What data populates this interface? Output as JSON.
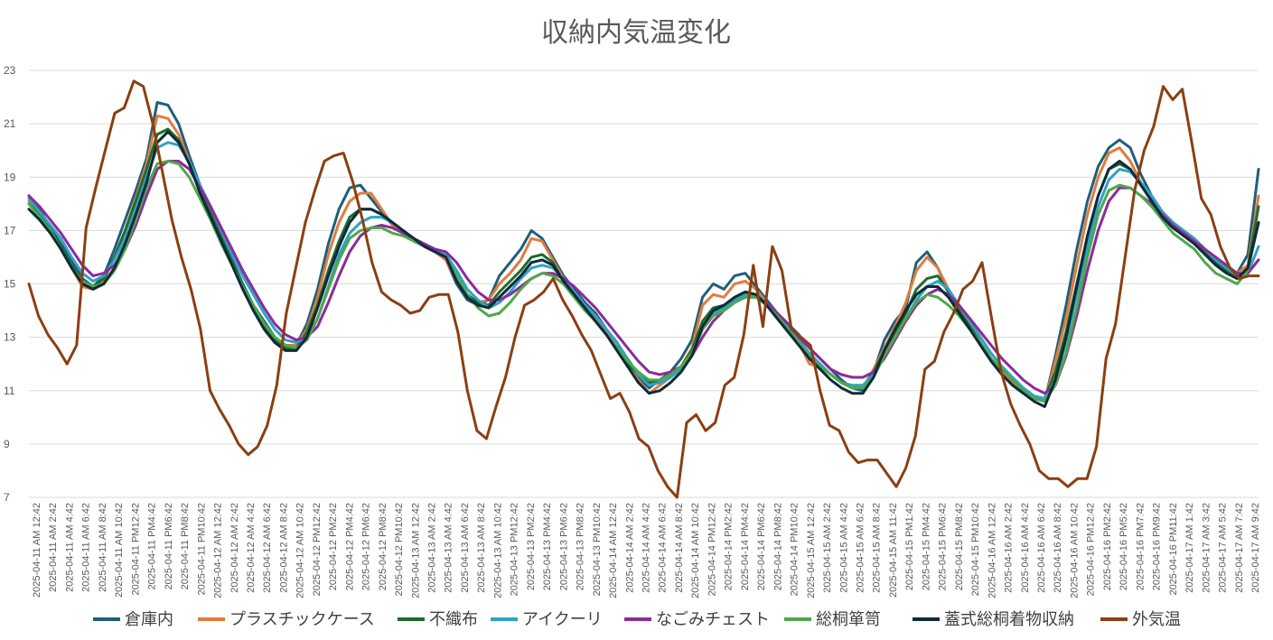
{
  "chart_data": {
    "type": "line",
    "title": "収納内気温変化",
    "xlabel": "",
    "ylabel": "",
    "ylim": [
      7,
      23
    ],
    "yticks": [
      7,
      9,
      11,
      13,
      15,
      17,
      19,
      21,
      23
    ],
    "grid": true,
    "legend": "bottom",
    "x_tick_labels": [
      "2025-04-11 AM 12:42",
      "2025-04-11 AM 2:42",
      "2025-04-11 AM 4:42",
      "2025-04-11 AM 6:42",
      "2025-04-11 AM 8:42",
      "2025-04-11 AM 10:42",
      "2025-04-11 PM12:42",
      "2025-04-11 PM4:42",
      "2025-04-11 PM6:42",
      "2025-04-11 PM8:42",
      "2025-04-11 PM10:42",
      "2025-04-12 AM 12:42",
      "2025-04-12 AM 2:42",
      "2025-04-12 AM 4:42",
      "2025-04-12 AM 6:42",
      "2025-04-12 AM 8:42",
      "2025-04-12 AM 10:42",
      "2025-04-12 PM12:42",
      "2025-04-12 PM2:42",
      "2025-04-12 PM4:42",
      "2025-04-12 PM6:42",
      "2025-04-12 PM8:42",
      "2025-04-12 PM10:42",
      "2025-04-13 AM 12:42",
      "2025-04-13 AM 2:42",
      "2025-04-13 AM 4:42",
      "2025-04-13 AM 6:42",
      "2025-04-13 AM 8:42",
      "2025-04-13 AM 10:42",
      "2025-04-13 PM12:42",
      "2025-04-13 PM2:42",
      "2025-04-13 PM4:42",
      "2025-04-13 PM6:42",
      "2025-04-13 PM8:42",
      "2025-04-13 PM10:42",
      "2025-04-14 AM 12:42",
      "2025-04-14 AM 2:42",
      "2025-04-14 AM 4:42",
      "2025-04-14 AM 6:42",
      "2025-04-14 AM 8:42",
      "2025-04-14 AM 10:42",
      "2025-04-14 PM12:42",
      "2025-04-14 PM2:42",
      "2025-04-14 PM4:42",
      "2025-04-14 PM6:42",
      "2025-04-14 PM8:42",
      "2025-04-14 PM10:42",
      "2025-04-15 AM 12:42",
      "2025-04-15 AM 2:42",
      "2025-04-15 AM 4:42",
      "2025-04-15 AM 6:42",
      "2025-04-15 AM 8:42",
      "2025-04-15 AM 11:42",
      "2025-04-15 PM1:42",
      "2025-04-15 PM4:42",
      "2025-04-15 PM6:42",
      "2025-04-15 PM8:42",
      "2025-04-15 PM10:42",
      "2025-04-16 AM 12:42",
      "2025-04-16 AM 2:42",
      "2025-04-16 AM 4:42",
      "2025-04-16 AM 6:42",
      "2025-04-16 AM 8:42",
      "2025-04-16 AM 10:42",
      "2025-04-16 PM12:42",
      "2025-04-16 PM2:42",
      "2025-04-16 PM5:42",
      "2025-04-16 PM7:42",
      "2025-04-16 PM9:42",
      "2025-04-16 PM11:42",
      "2025-04-17 AM 1:42",
      "2025-04-17 AM 3:42",
      "2025-04-17 AM 5:42",
      "2025-04-17 AM 7:42",
      "2025-04-17 AM 9:42"
    ],
    "series": [
      {
        "name": "倉庫内",
        "color": "#1f5f7a",
        "values": [
          18.3,
          17.8,
          17.1,
          16.5,
          15.9,
          15.2,
          14.9,
          15.3,
          16.3,
          17.4,
          18.5,
          19.7,
          21.8,
          21.7,
          21.0,
          19.8,
          18.7,
          17.7,
          16.8,
          15.9,
          15.0,
          14.2,
          13.6,
          13.0,
          12.7,
          12.7,
          13.5,
          14.8,
          16.5,
          17.8,
          18.6,
          18.7,
          18.2,
          17.7,
          17.2,
          16.9,
          16.6,
          16.4,
          16.2,
          15.9,
          15.0,
          14.4,
          14.2,
          14.4,
          15.3,
          15.8,
          16.3,
          17.0,
          16.7,
          16.0,
          15.3,
          14.8,
          14.3,
          13.9,
          13.3,
          12.8,
          12.1,
          11.5,
          11.1,
          11.4,
          11.7,
          12.2,
          12.9,
          14.5,
          15.0,
          14.8,
          15.3,
          15.4,
          14.9,
          14.4,
          13.9,
          13.5,
          13.1,
          12.6,
          12.2,
          11.8,
          11.4,
          11.1,
          11.0,
          11.7,
          12.9,
          13.6,
          14.1,
          15.8,
          16.2,
          15.6,
          14.7,
          14.0,
          13.4,
          12.7,
          12.1,
          11.6,
          11.2,
          10.9,
          10.7,
          10.6,
          12.3,
          14.2,
          16.3,
          18.1,
          19.4,
          20.1,
          20.4,
          20.1,
          19.1,
          18.3,
          17.7,
          17.2,
          16.9,
          16.6,
          16.2,
          15.8,
          15.6,
          15.4,
          16.1,
          19.3
        ]
      },
      {
        "name": "プラスチックケース",
        "color": "#e07c3e",
        "values": [
          18.1,
          17.5,
          17.0,
          16.3,
          15.6,
          14.9,
          14.8,
          15.1,
          16.0,
          17.0,
          18.2,
          19.5,
          21.3,
          21.2,
          20.6,
          19.6,
          18.5,
          17.6,
          16.7,
          15.8,
          14.9,
          14.1,
          13.4,
          12.9,
          12.7,
          12.7,
          13.3,
          14.5,
          16.1,
          17.3,
          18.1,
          18.4,
          18.4,
          17.8,
          17.2,
          16.9,
          16.7,
          16.4,
          16.2,
          15.9,
          15.1,
          14.6,
          14.3,
          14.4,
          15.0,
          15.4,
          15.9,
          16.7,
          16.6,
          15.9,
          15.2,
          14.7,
          14.2,
          13.7,
          13.2,
          12.6,
          12.0,
          11.4,
          10.9,
          11.2,
          11.5,
          11.9,
          12.6,
          14.2,
          14.6,
          14.5,
          15.0,
          15.1,
          14.8,
          14.3,
          13.8,
          13.3,
          12.8,
          12.0,
          11.9,
          11.6,
          11.3,
          11.1,
          11.1,
          11.8,
          12.6,
          13.4,
          14.3,
          15.5,
          16.0,
          15.6,
          14.8,
          14.1,
          13.5,
          12.8,
          12.2,
          11.7,
          11.3,
          10.9,
          10.7,
          10.6,
          12.1,
          13.7,
          15.7,
          17.6,
          19.0,
          19.9,
          20.1,
          19.6,
          18.8,
          18.3,
          17.7,
          17.3,
          16.9,
          16.6,
          16.2,
          15.9,
          15.6,
          15.4,
          15.7,
          18.3
        ]
      },
      {
        "name": "不織布",
        "color": "#1e6b2e",
        "values": [
          18.0,
          17.6,
          17.0,
          16.4,
          15.7,
          15.1,
          14.9,
          15.2,
          16.0,
          17.0,
          18.1,
          19.3,
          20.6,
          20.8,
          20.4,
          19.5,
          18.5,
          17.6,
          16.7,
          15.8,
          14.9,
          14.1,
          13.4,
          12.9,
          12.6,
          12.6,
          13.2,
          14.2,
          15.5,
          16.6,
          17.5,
          17.8,
          17.8,
          17.6,
          17.3,
          17.0,
          16.7,
          16.4,
          16.2,
          16.0,
          15.2,
          14.6,
          14.3,
          14.2,
          14.7,
          15.1,
          15.5,
          16.0,
          16.1,
          15.8,
          15.1,
          14.6,
          14.1,
          13.6,
          13.1,
          12.6,
          12.0,
          11.6,
          11.3,
          11.4,
          11.6,
          11.9,
          12.5,
          13.6,
          14.1,
          14.2,
          14.5,
          14.7,
          14.6,
          14.2,
          13.7,
          13.2,
          12.8,
          12.3,
          11.9,
          11.6,
          11.3,
          11.1,
          11.1,
          11.7,
          12.5,
          13.2,
          13.9,
          14.8,
          15.2,
          15.3,
          14.7,
          14.0,
          13.4,
          12.8,
          12.2,
          11.8,
          11.4,
          11.1,
          10.8,
          10.7,
          11.7,
          13.2,
          15.0,
          16.8,
          18.3,
          19.3,
          19.5,
          19.3,
          18.7,
          18.2,
          17.6,
          17.2,
          16.9,
          16.6,
          16.2,
          15.8,
          15.5,
          15.2,
          15.6,
          17.9
        ]
      },
      {
        "name": "アイクーリ",
        "color": "#2ea3c8",
        "values": [
          18.2,
          17.7,
          17.2,
          16.7,
          16.0,
          15.4,
          15.1,
          15.3,
          15.9,
          16.7,
          17.8,
          19.0,
          20.1,
          20.3,
          20.2,
          19.6,
          18.7,
          17.9,
          17.0,
          16.1,
          15.3,
          14.6,
          13.9,
          13.3,
          12.9,
          12.8,
          13.0,
          13.7,
          14.9,
          16.1,
          16.9,
          17.3,
          17.5,
          17.5,
          17.3,
          17.0,
          16.7,
          16.4,
          16.3,
          16.1,
          15.5,
          14.8,
          14.4,
          14.1,
          14.3,
          14.7,
          15.2,
          15.6,
          15.7,
          15.6,
          15.2,
          14.7,
          14.2,
          13.8,
          13.3,
          12.8,
          12.2,
          11.6,
          11.2,
          11.3,
          11.5,
          11.8,
          12.4,
          13.3,
          13.9,
          14.1,
          14.4,
          14.6,
          14.6,
          14.3,
          13.9,
          13.4,
          12.9,
          12.4,
          12.0,
          11.6,
          11.3,
          11.2,
          11.2,
          11.6,
          12.3,
          13.0,
          13.7,
          14.4,
          14.9,
          15.1,
          14.8,
          14.2,
          13.6,
          13.0,
          12.4,
          11.9,
          11.5,
          11.1,
          10.8,
          10.7,
          11.4,
          12.8,
          14.6,
          16.4,
          17.9,
          18.9,
          19.3,
          19.2,
          18.8,
          18.3,
          17.7,
          17.3,
          17.0,
          16.7,
          16.3,
          15.9,
          15.6,
          15.3,
          15.4,
          16.4
        ]
      },
      {
        "name": "なごみチェスト",
        "color": "#8c2a9a",
        "values": [
          18.3,
          17.9,
          17.4,
          16.9,
          16.3,
          15.7,
          15.3,
          15.4,
          15.7,
          16.3,
          17.2,
          18.3,
          19.3,
          19.6,
          19.6,
          19.3,
          18.6,
          17.9,
          17.1,
          16.3,
          15.5,
          14.8,
          14.1,
          13.5,
          13.1,
          12.9,
          13.0,
          13.4,
          14.3,
          15.3,
          16.2,
          16.8,
          17.1,
          17.2,
          17.1,
          16.9,
          16.7,
          16.5,
          16.3,
          16.2,
          15.8,
          15.2,
          14.7,
          14.4,
          14.4,
          14.6,
          14.9,
          15.2,
          15.4,
          15.4,
          15.2,
          14.9,
          14.5,
          14.1,
          13.6,
          13.1,
          12.6,
          12.1,
          11.7,
          11.6,
          11.7,
          11.9,
          12.3,
          13.0,
          13.6,
          14.0,
          14.3,
          14.5,
          14.5,
          14.3,
          13.9,
          13.5,
          13.0,
          12.6,
          12.2,
          11.8,
          11.6,
          11.5,
          11.5,
          11.7,
          12.2,
          12.9,
          13.6,
          14.2,
          14.6,
          14.8,
          14.6,
          14.2,
          13.7,
          13.2,
          12.7,
          12.2,
          11.8,
          11.4,
          11.1,
          10.9,
          11.2,
          12.3,
          13.8,
          15.5,
          17.0,
          18.1,
          18.6,
          18.6,
          18.3,
          18.0,
          17.6,
          17.2,
          16.9,
          16.6,
          16.3,
          16.0,
          15.7,
          15.4,
          15.4,
          15.9
        ]
      },
      {
        "name": "総桐箪笥",
        "color": "#4ea84a",
        "values": [
          18.0,
          17.5,
          17.0,
          16.3,
          15.6,
          15.1,
          14.9,
          15.0,
          15.5,
          16.3,
          17.4,
          18.6,
          19.5,
          19.6,
          19.5,
          19.0,
          18.2,
          17.4,
          16.5,
          15.7,
          14.9,
          14.2,
          13.5,
          13.0,
          12.7,
          12.6,
          12.9,
          13.7,
          14.8,
          15.9,
          16.7,
          17.0,
          17.1,
          17.1,
          16.9,
          16.8,
          16.6,
          16.4,
          16.2,
          16.0,
          15.3,
          14.6,
          14.1,
          13.8,
          13.9,
          14.3,
          14.8,
          15.2,
          15.4,
          15.3,
          15.0,
          14.5,
          14.0,
          13.6,
          13.1,
          12.6,
          12.1,
          11.7,
          11.4,
          11.4,
          11.6,
          11.9,
          12.4,
          13.3,
          13.8,
          14.0,
          14.3,
          14.5,
          14.5,
          14.2,
          13.8,
          13.3,
          12.8,
          12.3,
          11.9,
          11.6,
          11.3,
          11.1,
          11.1,
          11.5,
          12.3,
          13.0,
          13.7,
          14.3,
          14.6,
          14.5,
          14.2,
          13.8,
          13.3,
          12.8,
          12.2,
          11.8,
          11.4,
          11.0,
          10.7,
          10.6,
          11.2,
          12.4,
          14.1,
          16.0,
          17.6,
          18.5,
          18.7,
          18.6,
          18.3,
          17.9,
          17.4,
          16.9,
          16.6,
          16.3,
          15.8,
          15.4,
          15.2,
          15.0,
          15.5,
          17.3
        ]
      },
      {
        "name": "蓋式総桐着物収納",
        "color": "#0f2a3a",
        "values": [
          17.8,
          17.4,
          16.9,
          16.3,
          15.6,
          15.0,
          14.8,
          15.0,
          15.6,
          16.5,
          17.6,
          18.8,
          20.3,
          20.7,
          20.3,
          19.5,
          18.4,
          17.5,
          16.6,
          15.7,
          14.8,
          14.0,
          13.3,
          12.8,
          12.5,
          12.5,
          13.0,
          14.1,
          15.3,
          16.4,
          17.3,
          17.8,
          17.8,
          17.6,
          17.3,
          17.0,
          16.7,
          16.4,
          16.2,
          16.0,
          15.1,
          14.5,
          14.2,
          14.1,
          14.5,
          14.9,
          15.3,
          15.8,
          15.9,
          15.7,
          15.1,
          14.6,
          14.1,
          13.6,
          13.1,
          12.5,
          11.9,
          11.3,
          10.9,
          11.0,
          11.3,
          11.7,
          12.3,
          13.4,
          14.0,
          14.2,
          14.5,
          14.7,
          14.6,
          14.2,
          13.7,
          13.2,
          12.7,
          12.2,
          11.8,
          11.4,
          11.1,
          10.9,
          10.9,
          11.5,
          12.5,
          13.3,
          14.0,
          14.6,
          14.9,
          14.9,
          14.5,
          13.9,
          13.3,
          12.7,
          12.1,
          11.6,
          11.2,
          10.9,
          10.6,
          10.4,
          11.4,
          13.0,
          14.9,
          16.8,
          18.3,
          19.3,
          19.6,
          19.3,
          18.7,
          18.1,
          17.5,
          17.1,
          16.8,
          16.5,
          16.1,
          15.7,
          15.4,
          15.2,
          15.6,
          17.3
        ]
      },
      {
        "name": "外気温",
        "color": "#8b3f12",
        "values": [
          15.0,
          13.8,
          13.1,
          12.6,
          12.0,
          12.7,
          17.1,
          18.6,
          20.0,
          21.4,
          21.6,
          22.6,
          22.4,
          21.0,
          19.2,
          17.4,
          16.0,
          14.8,
          13.3,
          11.0,
          10.3,
          9.7,
          9.0,
          8.6,
          8.9,
          9.7,
          11.2,
          13.9,
          15.6,
          17.3,
          18.5,
          19.6,
          19.8,
          19.9,
          18.8,
          17.4,
          15.8,
          14.7,
          14.4,
          14.2,
          13.9,
          14.0,
          14.5,
          14.6,
          14.6,
          13.2,
          11.0,
          9.5,
          9.2,
          10.4,
          11.5,
          13.0,
          14.2,
          14.4,
          14.7,
          15.2,
          14.4,
          13.8,
          13.1,
          12.5,
          11.6,
          10.7,
          10.9,
          10.2,
          9.2,
          8.9,
          8.0,
          7.4,
          7.0,
          9.8,
          10.1,
          9.5,
          9.8,
          11.2,
          11.5,
          13.1,
          15.7,
          13.4,
          16.4,
          15.5,
          13.3,
          13.0,
          12.7,
          11.0,
          9.7,
          9.5,
          8.7,
          8.3,
          8.4,
          8.4,
          7.9,
          7.4,
          8.1,
          9.3,
          11.8,
          12.1,
          13.2,
          13.9,
          14.8,
          15.1,
          15.8,
          13.7,
          11.7,
          10.5,
          9.7,
          9.0,
          8.0,
          7.7,
          7.7,
          7.4,
          7.7,
          7.7,
          8.9,
          12.2,
          13.5,
          16.0,
          18.5,
          20.0,
          20.9,
          22.4,
          21.9,
          22.3,
          20.3,
          18.2,
          17.6,
          16.4,
          15.6,
          15.2,
          15.3,
          15.3
        ]
      }
    ]
  }
}
